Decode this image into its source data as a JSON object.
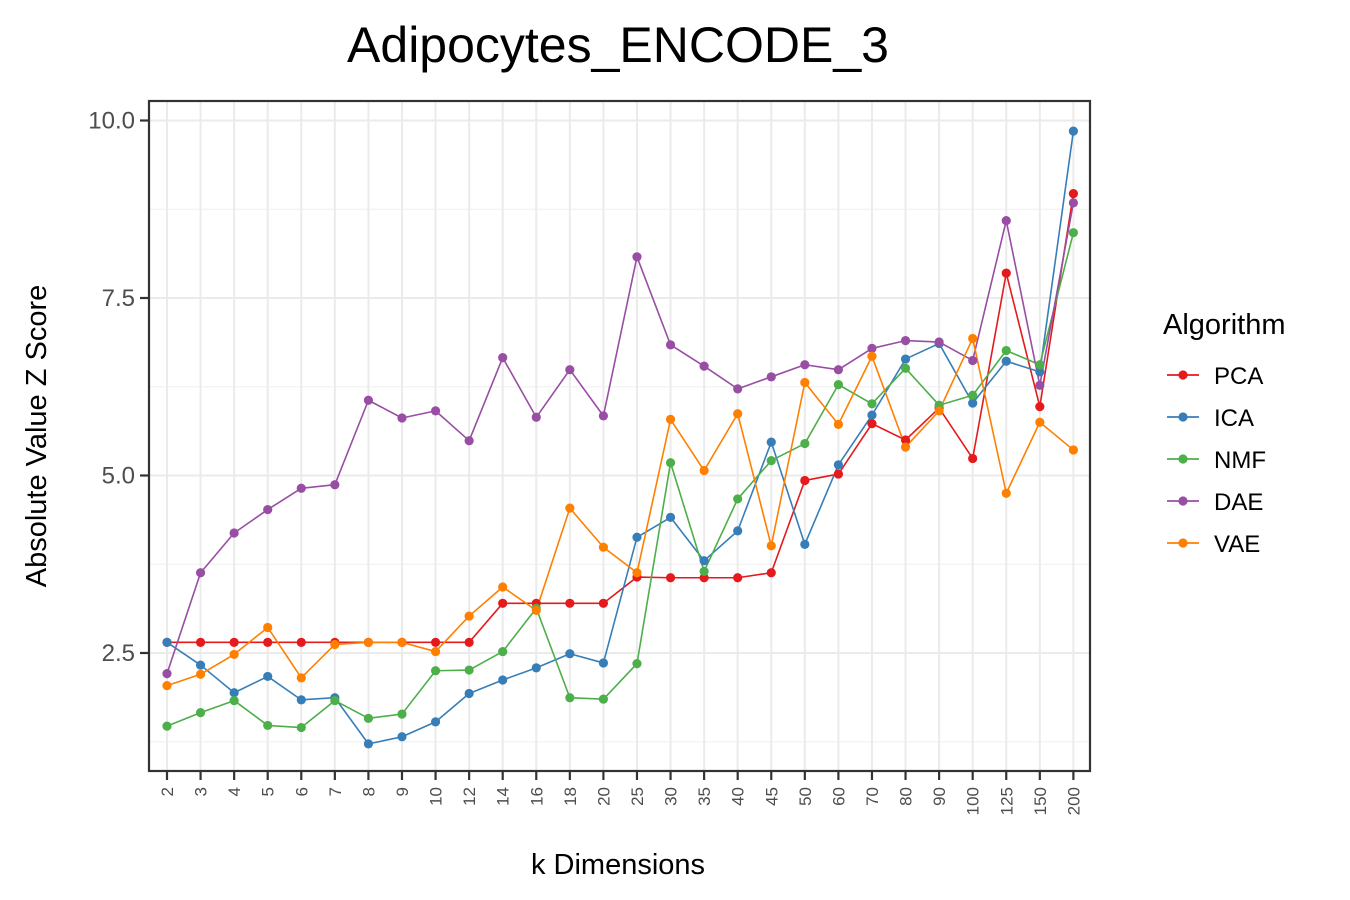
{
  "chart_data": {
    "type": "line",
    "title": "Adipocytes_ENCODE_3",
    "xlabel": "k Dimensions",
    "ylabel": "Absolute Value Z Score",
    "categories": [
      "2",
      "3",
      "4",
      "5",
      "6",
      "7",
      "8",
      "9",
      "10",
      "12",
      "14",
      "16",
      "18",
      "20",
      "25",
      "30",
      "35",
      "40",
      "45",
      "50",
      "60",
      "70",
      "80",
      "90",
      "100",
      "125",
      "150",
      "200"
    ],
    "yticks": [
      "2.5",
      "5.0",
      "7.5",
      "10.0"
    ],
    "ylim": [
      0.9,
      10.3
    ],
    "legend": {
      "title": "Algorithm",
      "position": "right"
    },
    "grid": true,
    "series": [
      {
        "name": "PCA",
        "color": "#e41a1c",
        "values": [
          2.65,
          2.65,
          2.65,
          2.65,
          2.65,
          2.65,
          2.65,
          2.65,
          2.65,
          2.65,
          3.2,
          3.2,
          3.2,
          3.2,
          3.57,
          3.56,
          3.56,
          3.56,
          3.63,
          4.93,
          5.02,
          5.73,
          5.5,
          5.95,
          5.24,
          7.85,
          5.97,
          8.97
        ]
      },
      {
        "name": "ICA",
        "color": "#377eb8",
        "values": [
          2.65,
          2.33,
          1.94,
          2.17,
          1.84,
          1.87,
          1.22,
          1.32,
          1.53,
          1.93,
          2.12,
          2.29,
          2.49,
          2.36,
          4.13,
          4.41,
          3.8,
          4.22,
          5.47,
          4.03,
          5.15,
          5.85,
          6.64,
          6.86,
          6.02,
          6.61,
          6.46,
          9.85
        ]
      },
      {
        "name": "NMF",
        "color": "#4daf4a",
        "values": [
          1.47,
          1.66,
          1.83,
          1.48,
          1.45,
          1.83,
          1.58,
          1.64,
          2.25,
          2.26,
          2.52,
          3.13,
          1.87,
          1.85,
          2.35,
          5.18,
          3.65,
          4.67,
          5.21,
          5.45,
          6.28,
          6.01,
          6.51,
          5.99,
          6.13,
          6.76,
          6.56,
          8.42
        ]
      },
      {
        "name": "DAE",
        "color": "#984ea3",
        "values": [
          2.21,
          3.63,
          4.19,
          4.52,
          4.82,
          4.87,
          6.06,
          5.81,
          5.91,
          5.49,
          6.66,
          5.82,
          6.49,
          5.84,
          8.08,
          6.84,
          6.54,
          6.22,
          6.39,
          6.56,
          6.49,
          6.79,
          6.9,
          6.88,
          6.62,
          8.59,
          6.27,
          8.84
        ]
      },
      {
        "name": "VAE",
        "color": "#ff7f00",
        "values": [
          2.04,
          2.2,
          2.48,
          2.86,
          2.15,
          2.62,
          2.65,
          2.65,
          2.52,
          3.02,
          3.43,
          3.1,
          4.54,
          3.99,
          3.63,
          5.79,
          5.07,
          5.87,
          4.01,
          6.31,
          5.72,
          6.68,
          5.4,
          5.91,
          6.93,
          4.75,
          5.75,
          5.36
        ]
      }
    ]
  }
}
